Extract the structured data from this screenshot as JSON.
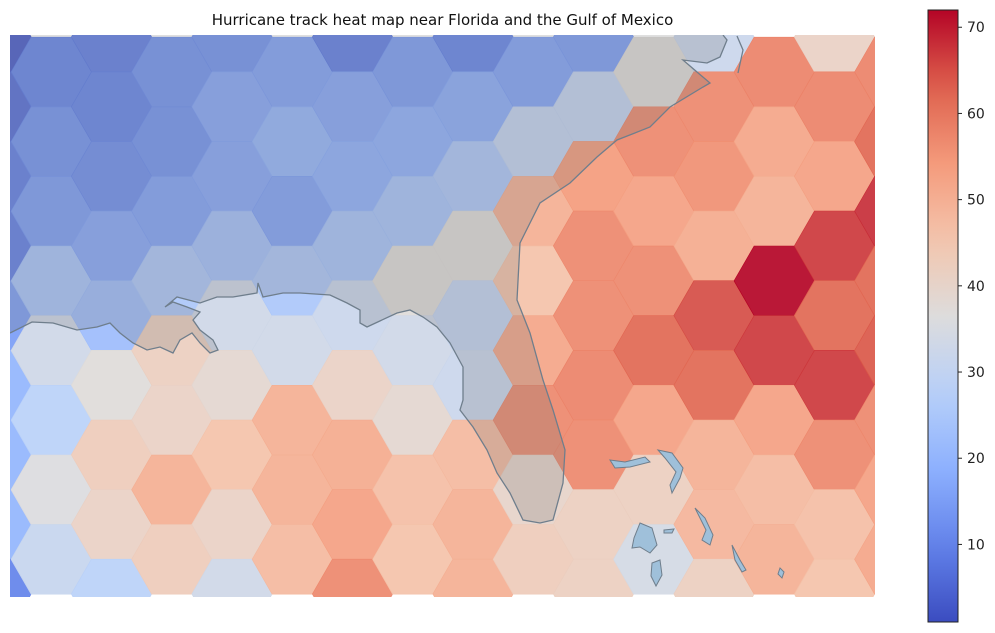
{
  "chart_data": {
    "type": "heatmap",
    "subtype": "hexbin-on-map",
    "title": "Hurricane track heat map near Florida and the Gulf of Mexico",
    "xlabel": "",
    "ylabel": "",
    "colormap": "coolwarm",
    "grid": false,
    "legend": "colorbar-right",
    "colorbar": {
      "min": 1,
      "max": 72,
      "ticks": [
        10,
        20,
        30,
        40,
        50,
        60,
        70
      ]
    },
    "hex_columns_left_to_right_top_to_bottom": [
      [
        3,
        6,
        9,
        9,
        15,
        20,
        20,
        20,
        10
      ],
      [
        10,
        13,
        15,
        24,
        33,
        28,
        36,
        31
      ],
      [
        9,
        10,
        12,
        17,
        22,
        37,
        43,
        41,
        28
      ],
      [
        13,
        13,
        16,
        25,
        42,
        41,
        50,
        43
      ],
      [
        13,
        17,
        17,
        23,
        33,
        39,
        46,
        41,
        33
      ],
      [
        16,
        20,
        16,
        25,
        33,
        50,
        50,
        48
      ],
      [
        9,
        17,
        19,
        24,
        32,
        41,
        51,
        53,
        57
      ],
      [
        15,
        19,
        24,
        37,
        33,
        39,
        47,
        46
      ],
      [
        10,
        18,
        25,
        37,
        30,
        32,
        48,
        50,
        50
      ],
      [
        16,
        30,
        50,
        46,
        52,
        57,
        40,
        43
      ],
      [
        15,
        30,
        54,
        57,
        57,
        58,
        57,
        42,
        42
      ],
      [
        37,
        57,
        53,
        57,
        62,
        53,
        42,
        34
      ],
      [
        32,
        57,
        56,
        51,
        65,
        62,
        50,
        49,
        42
      ],
      [
        58,
        52,
        50,
        72,
        67,
        53,
        48,
        50
      ],
      [
        41,
        58,
        53,
        67,
        62,
        67,
        57,
        47,
        46
      ],
      [
        58,
        62,
        68,
        62,
        64,
        57,
        53,
        52
      ]
    ]
  },
  "colors": {
    "land_overlay": "#6e6e6e",
    "coastline": "#6f7e8c",
    "island_fill": "#9fc0da"
  }
}
